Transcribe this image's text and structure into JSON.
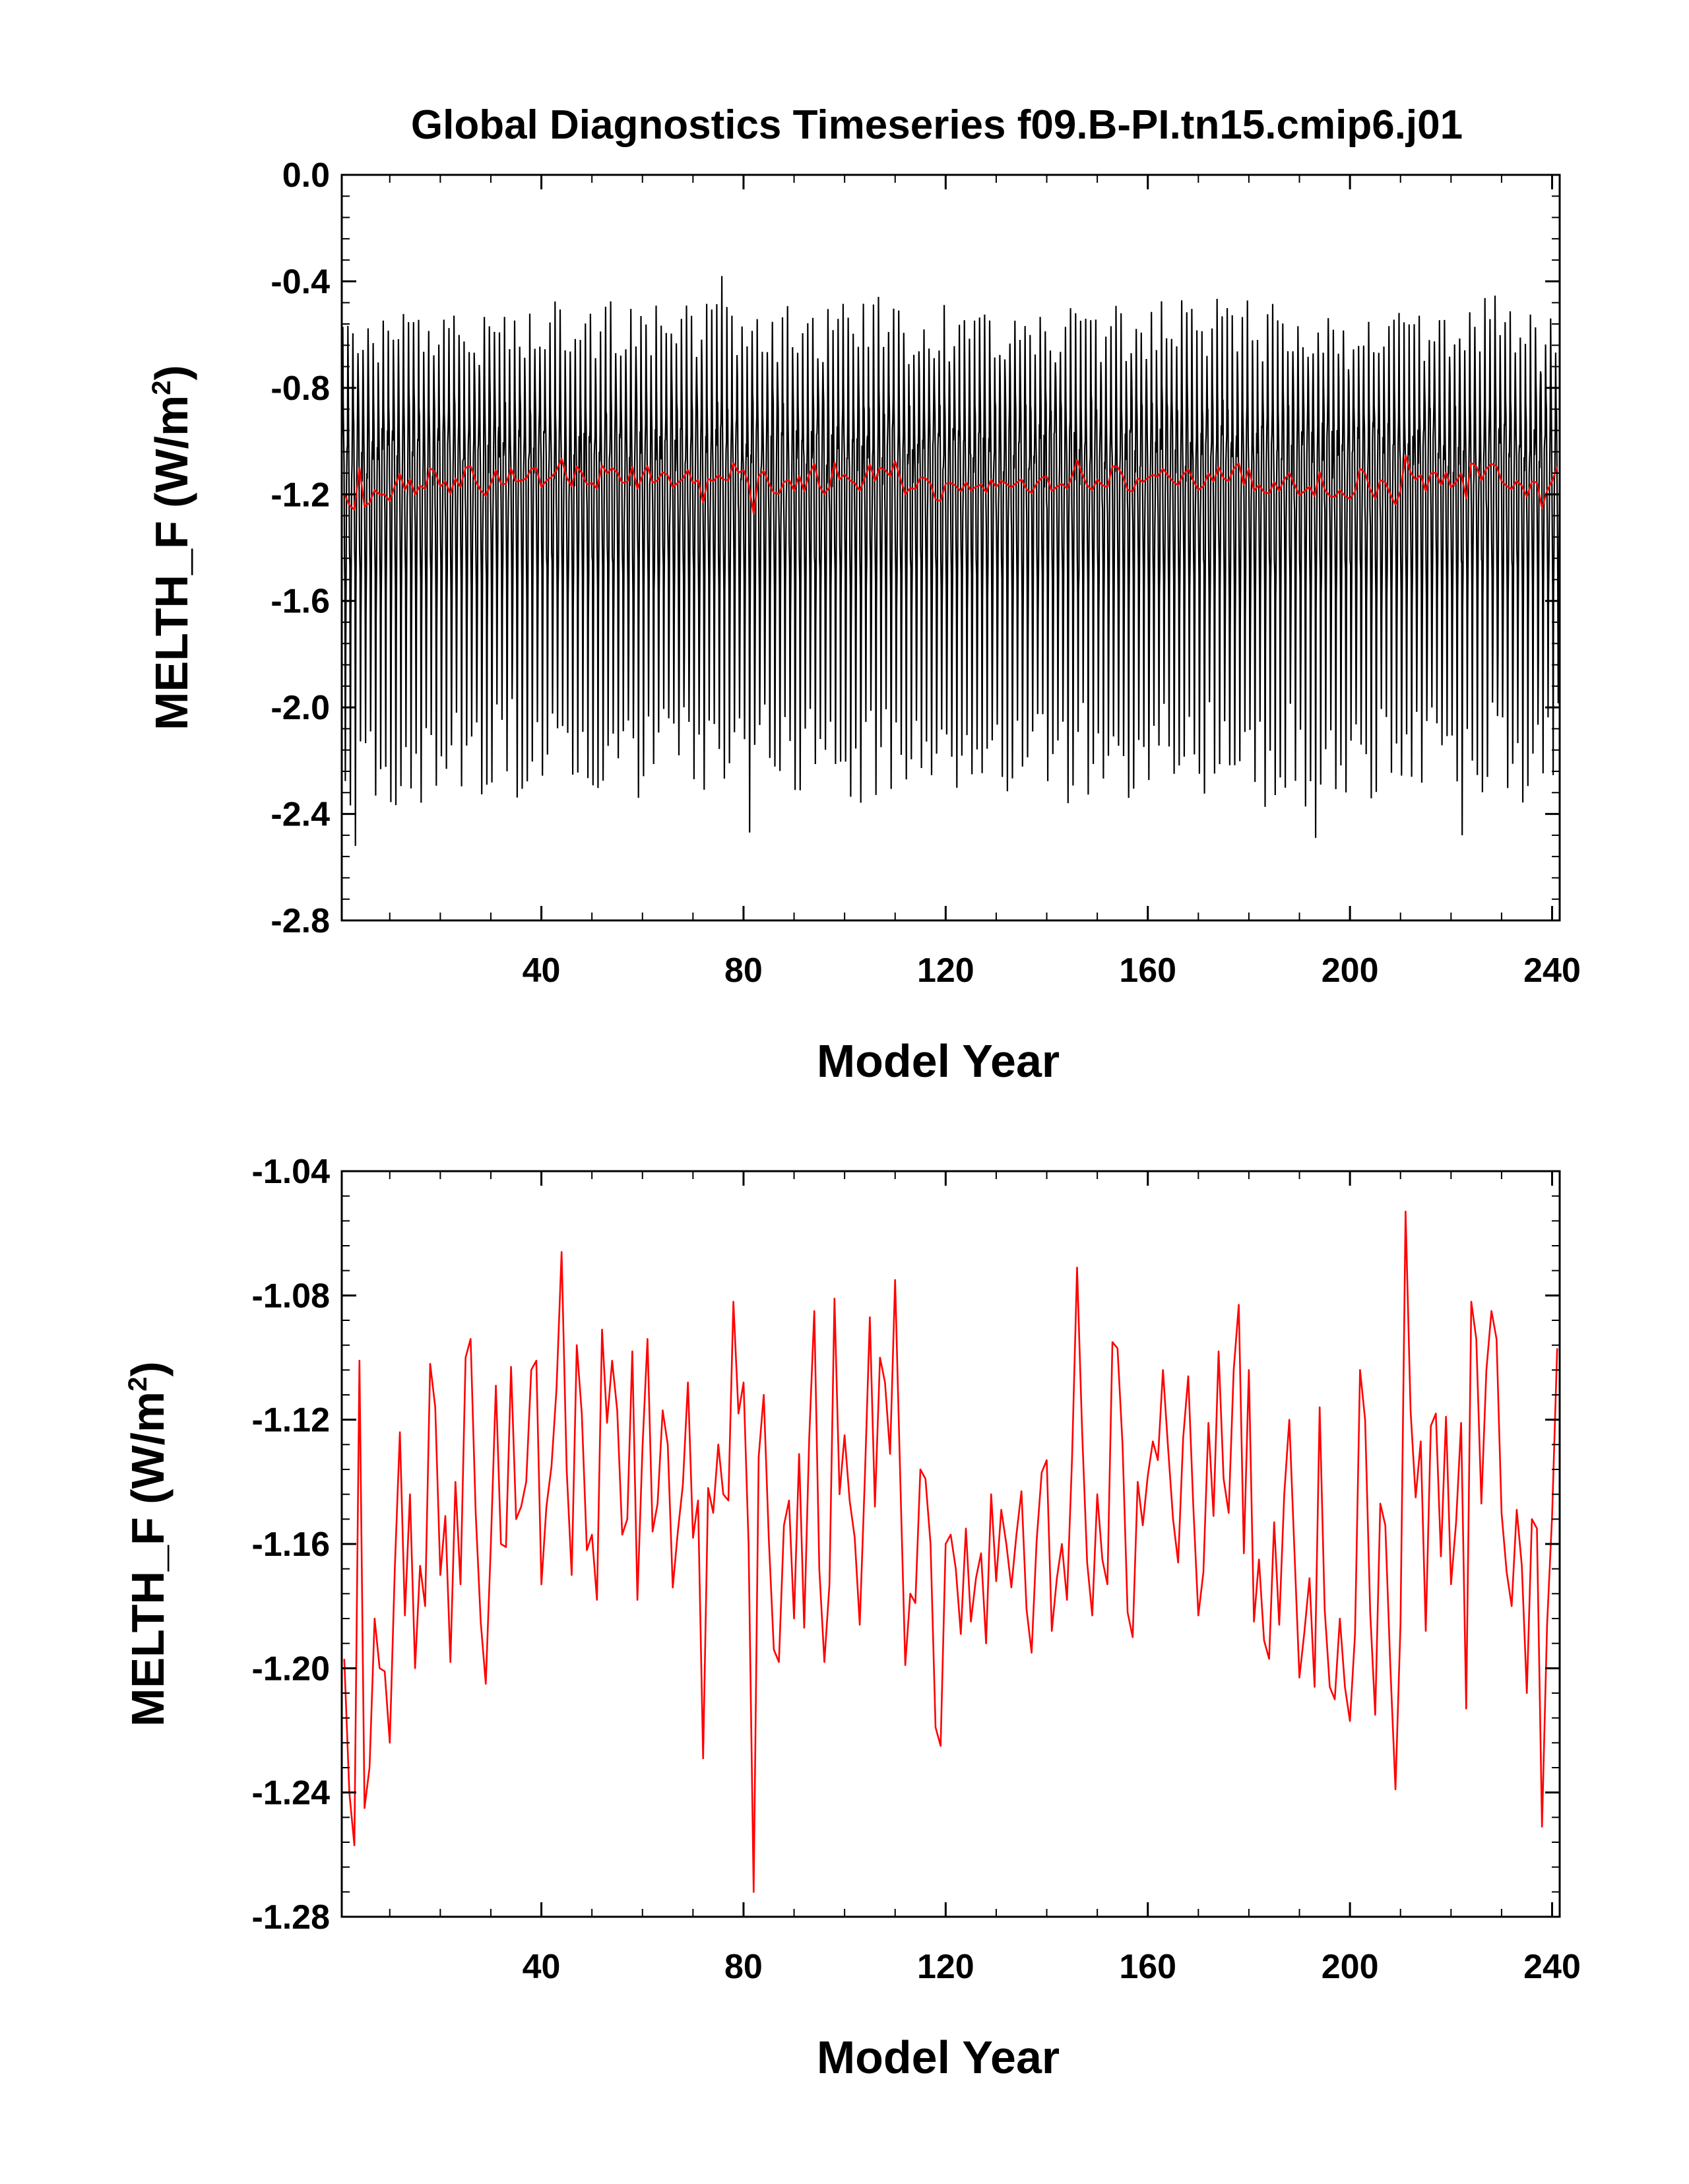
{
  "figure": {
    "title": "Global Diagnostics Timeseries f09.B-PI.tn15.cmip6.j01"
  },
  "colors": {
    "monthly": "#000000",
    "annual": "#ff0000",
    "frame": "#000000",
    "background": "#ffffff"
  },
  "chart_data": [
    {
      "type": "line",
      "xlabel": "Model Year",
      "ylabel": "MELTH_F (W/m2)",
      "ylabel_text": "MELTH_F (W/m",
      "ylabel_sup": "2",
      "ylabel_close": ")",
      "xlim": [
        0.5,
        241.5
      ],
      "ylim": [
        -2.8,
        0.0
      ],
      "xticks": [
        40,
        80,
        120,
        160,
        200,
        240
      ],
      "xtick_labels": [
        "40",
        "80",
        "120",
        "160",
        "200",
        "240"
      ],
      "yticks": [
        0.0,
        -0.4,
        -0.8,
        -1.2,
        -1.6,
        -2.0,
        -2.4,
        -2.8
      ],
      "ytick_labels": [
        "0.0",
        "-0.4",
        "-0.8",
        "-1.2",
        "-1.6",
        "-2.0",
        "-2.4",
        "-2.8"
      ],
      "grid": false,
      "series": [
        {
          "kind": "monthly",
          "color": "#000000",
          "summer_minimum_typical": -2.1,
          "winter_maximum_typical": -0.55,
          "extreme_min": {
            "year": 3,
            "value": -2.52
          },
          "extreme_max": {
            "year": 76,
            "value": -0.38
          },
          "lowest_values": [
            {
              "year": 3,
              "value": -2.52
            },
            {
              "year": 81,
              "value": -2.47
            },
            {
              "year": 193,
              "value": -2.49
            },
            {
              "year": 222,
              "value": -2.48
            }
          ]
        },
        {
          "kind": "annual",
          "color": "#ff0000",
          "values": "see shared annual_mean"
        }
      ]
    },
    {
      "type": "line",
      "xlabel": "Model Year",
      "ylabel": "MELTH_F (W/m2)",
      "ylabel_text": "MELTH_F (W/m",
      "ylabel_sup": "2",
      "ylabel_close": ")",
      "xlim": [
        0.5,
        241.5
      ],
      "ylim": [
        -1.28,
        -1.04
      ],
      "xticks": [
        40,
        80,
        120,
        160,
        200,
        240
      ],
      "xtick_labels": [
        "40",
        "80",
        "120",
        "160",
        "200",
        "240"
      ],
      "yticks": [
        -1.04,
        -1.08,
        -1.12,
        -1.16,
        -1.2,
        -1.24,
        -1.28
      ],
      "ytick_labels": [
        "-1.04",
        "-1.08",
        "-1.12",
        "-1.16",
        "-1.20",
        "-1.24",
        "-1.28"
      ],
      "grid": false,
      "series": [
        {
          "kind": "annual",
          "color": "#ff0000",
          "values": "see shared annual_mean"
        }
      ]
    }
  ],
  "annual_mean": {
    "x_start": 1,
    "x_end": 241,
    "anchors": [
      [
        1,
        -1.197
      ],
      [
        2,
        -1.24
      ],
      [
        3,
        -1.257
      ],
      [
        4,
        -1.101
      ],
      [
        5,
        -1.245
      ],
      [
        6,
        -1.232
      ],
      [
        7,
        -1.184
      ],
      [
        8,
        -1.2
      ],
      [
        9,
        -1.201
      ],
      [
        10,
        -1.224
      ],
      [
        11,
        -1.168
      ],
      [
        12,
        -1.124
      ],
      [
        13,
        -1.183
      ],
      [
        14,
        -1.144
      ],
      [
        15,
        -1.2
      ],
      [
        16,
        -1.167
      ],
      [
        17,
        -1.18
      ],
      [
        18,
        -1.102
      ],
      [
        19,
        -1.116
      ],
      [
        20,
        -1.17
      ],
      [
        21,
        -1.151
      ],
      [
        22,
        -1.198
      ],
      [
        23,
        -1.14
      ],
      [
        24,
        -1.173
      ],
      [
        25,
        -1.1
      ],
      [
        26,
        -1.094
      ],
      [
        27,
        -1.15
      ],
      [
        28,
        -1.185
      ],
      [
        29,
        -1.205
      ],
      [
        30,
        -1.16
      ],
      [
        31,
        -1.109
      ],
      [
        32,
        -1.16
      ],
      [
        33,
        -1.161
      ],
      [
        34,
        -1.103
      ],
      [
        35,
        -1.152
      ],
      [
        36,
        -1.148
      ],
      [
        37,
        -1.14
      ],
      [
        38,
        -1.104
      ],
      [
        39,
        -1.101
      ],
      [
        40,
        -1.173
      ],
      [
        41,
        -1.148
      ],
      [
        42,
        -1.135
      ],
      [
        43,
        -1.11
      ],
      [
        44,
        -1.066
      ],
      [
        45,
        -1.136
      ],
      [
        46,
        -1.17
      ],
      [
        47,
        -1.096
      ],
      [
        48,
        -1.118
      ],
      [
        49,
        -1.162
      ],
      [
        50,
        -1.157
      ],
      [
        51,
        -1.178
      ],
      [
        52,
        -1.091
      ],
      [
        53,
        -1.121
      ],
      [
        54,
        -1.101
      ],
      [
        55,
        -1.117
      ],
      [
        56,
        -1.157
      ],
      [
        57,
        -1.152
      ],
      [
        58,
        -1.098
      ],
      [
        59,
        -1.178
      ],
      [
        60,
        -1.129
      ],
      [
        61,
        -1.094
      ],
      [
        62,
        -1.156
      ],
      [
        63,
        -1.147
      ],
      [
        64,
        -1.117
      ],
      [
        65,
        -1.128
      ],
      [
        66,
        -1.174
      ],
      [
        67,
        -1.156
      ],
      [
        68,
        -1.141
      ],
      [
        69,
        -1.108
      ],
      [
        70,
        -1.158
      ],
      [
        71,
        -1.146
      ],
      [
        72,
        -1.229
      ],
      [
        73,
        -1.142
      ],
      [
        74,
        -1.15
      ],
      [
        75,
        -1.128
      ],
      [
        76,
        -1.144
      ],
      [
        77,
        -1.146
      ],
      [
        78,
        -1.082
      ],
      [
        79,
        -1.118
      ],
      [
        80,
        -1.108
      ],
      [
        81,
        -1.16
      ],
      [
        82,
        -1.272
      ],
      [
        83,
        -1.132
      ],
      [
        84,
        -1.112
      ],
      [
        85,
        -1.158
      ],
      [
        86,
        -1.194
      ],
      [
        87,
        -1.198
      ],
      [
        88,
        -1.154
      ],
      [
        89,
        -1.146
      ],
      [
        90,
        -1.184
      ],
      [
        91,
        -1.131
      ],
      [
        92,
        -1.187
      ],
      [
        93,
        -1.126
      ],
      [
        94,
        -1.085
      ],
      [
        95,
        -1.168
      ],
      [
        96,
        -1.198
      ],
      [
        97,
        -1.173
      ],
      [
        98,
        -1.081
      ],
      [
        99,
        -1.144
      ],
      [
        100,
        -1.125
      ],
      [
        101,
        -1.146
      ],
      [
        102,
        -1.158
      ],
      [
        103,
        -1.186
      ],
      [
        104,
        -1.139
      ],
      [
        105,
        -1.087
      ],
      [
        106,
        -1.148
      ],
      [
        107,
        -1.1
      ],
      [
        108,
        -1.108
      ],
      [
        109,
        -1.131
      ],
      [
        110,
        -1.075
      ],
      [
        111,
        -1.138
      ],
      [
        112,
        -1.199
      ],
      [
        113,
        -1.176
      ],
      [
        114,
        -1.179
      ],
      [
        115,
        -1.136
      ],
      [
        116,
        -1.139
      ],
      [
        117,
        -1.16
      ],
      [
        118,
        -1.219
      ],
      [
        119,
        -1.225
      ],
      [
        120,
        -1.16
      ],
      [
        121,
        -1.157
      ],
      [
        122,
        -1.168
      ],
      [
        123,
        -1.189
      ],
      [
        124,
        -1.155
      ],
      [
        125,
        -1.185
      ],
      [
        126,
        -1.171
      ],
      [
        127,
        -1.163
      ],
      [
        128,
        -1.192
      ],
      [
        129,
        -1.144
      ],
      [
        130,
        -1.172
      ],
      [
        131,
        -1.149
      ],
      [
        132,
        -1.16
      ],
      [
        133,
        -1.174
      ],
      [
        134,
        -1.157
      ],
      [
        135,
        -1.143
      ],
      [
        136,
        -1.181
      ],
      [
        137,
        -1.195
      ],
      [
        138,
        -1.159
      ],
      [
        139,
        -1.137
      ],
      [
        140,
        -1.133
      ],
      [
        141,
        -1.188
      ],
      [
        142,
        -1.171
      ],
      [
        143,
        -1.16
      ],
      [
        144,
        -1.178
      ],
      [
        145,
        -1.133
      ],
      [
        146,
        -1.071
      ],
      [
        147,
        -1.124
      ],
      [
        148,
        -1.166
      ],
      [
        149,
        -1.183
      ],
      [
        150,
        -1.144
      ],
      [
        151,
        -1.165
      ],
      [
        152,
        -1.173
      ],
      [
        153,
        -1.095
      ],
      [
        154,
        -1.097
      ],
      [
        155,
        -1.128
      ],
      [
        156,
        -1.182
      ],
      [
        157,
        -1.19
      ],
      [
        158,
        -1.14
      ],
      [
        159,
        -1.154
      ],
      [
        160,
        -1.138
      ],
      [
        161,
        -1.127
      ],
      [
        162,
        -1.133
      ],
      [
        163,
        -1.104
      ],
      [
        164,
        -1.129
      ],
      [
        165,
        -1.152
      ],
      [
        166,
        -1.166
      ],
      [
        167,
        -1.126
      ],
      [
        168,
        -1.106
      ],
      [
        169,
        -1.148
      ],
      [
        170,
        -1.183
      ],
      [
        171,
        -1.169
      ],
      [
        172,
        -1.121
      ],
      [
        173,
        -1.151
      ],
      [
        174,
        -1.098
      ],
      [
        175,
        -1.139
      ],
      [
        176,
        -1.15
      ],
      [
        177,
        -1.104
      ],
      [
        178,
        -1.083
      ],
      [
        179,
        -1.163
      ],
      [
        180,
        -1.104
      ],
      [
        181,
        -1.185
      ],
      [
        182,
        -1.165
      ],
      [
        183,
        -1.191
      ],
      [
        184,
        -1.197
      ],
      [
        185,
        -1.153
      ],
      [
        186,
        -1.186
      ],
      [
        187,
        -1.144
      ],
      [
        188,
        -1.12
      ],
      [
        189,
        -1.162
      ],
      [
        190,
        -1.203
      ],
      [
        191,
        -1.188
      ],
      [
        192,
        -1.171
      ],
      [
        193,
        -1.206
      ],
      [
        194,
        -1.116
      ],
      [
        195,
        -1.181
      ],
      [
        196,
        -1.206
      ],
      [
        197,
        -1.21
      ],
      [
        198,
        -1.184
      ],
      [
        199,
        -1.206
      ],
      [
        200,
        -1.217
      ],
      [
        201,
        -1.189
      ],
      [
        202,
        -1.104
      ],
      [
        203,
        -1.12
      ],
      [
        204,
        -1.182
      ],
      [
        205,
        -1.215
      ],
      [
        206,
        -1.147
      ],
      [
        207,
        -1.154
      ],
      [
        208,
        -1.2
      ],
      [
        209,
        -1.239
      ],
      [
        210,
        -1.186
      ],
      [
        211,
        -1.053
      ],
      [
        212,
        -1.117
      ],
      [
        213,
        -1.145
      ],
      [
        214,
        -1.127
      ],
      [
        215,
        -1.188
      ],
      [
        216,
        -1.122
      ],
      [
        217,
        -1.118
      ],
      [
        218,
        -1.164
      ],
      [
        219,
        -1.119
      ],
      [
        220,
        -1.173
      ],
      [
        221,
        -1.153
      ],
      [
        222,
        -1.121
      ],
      [
        223,
        -1.213
      ],
      [
        224,
        -1.082
      ],
      [
        225,
        -1.094
      ],
      [
        226,
        -1.147
      ],
      [
        227,
        -1.104
      ],
      [
        228,
        -1.085
      ],
      [
        229,
        -1.094
      ],
      [
        230,
        -1.15
      ],
      [
        231,
        -1.169
      ],
      [
        232,
        -1.18
      ],
      [
        233,
        -1.149
      ],
      [
        234,
        -1.167
      ],
      [
        235,
        -1.208
      ],
      [
        236,
        -1.152
      ],
      [
        237,
        -1.155
      ],
      [
        238,
        -1.251
      ],
      [
        239,
        -1.186
      ],
      [
        240,
        -1.151
      ],
      [
        241,
        -1.097
      ]
    ]
  }
}
